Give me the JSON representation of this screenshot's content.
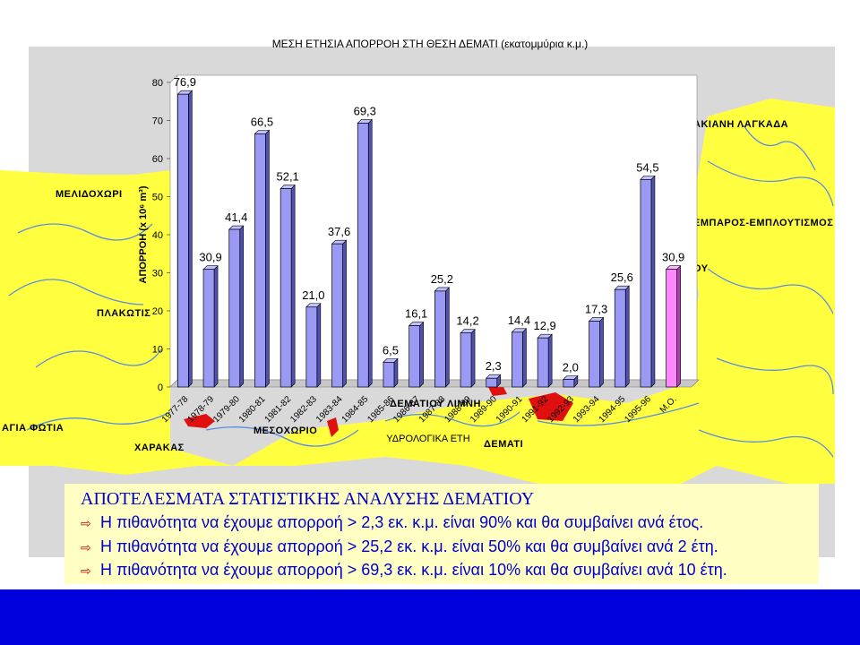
{
  "chart_data": {
    "type": "bar",
    "title": "ΜΕΣΗ ΕΤΗΣΙΑ ΑΠΟΡΡΟΗ ΣΤΗ ΘΕΣΗ ΔΕΜΑΤΙ (εκατομμύρια κ.μ.)",
    "ylabel": "ΑΠΟΡΡΟΗ (x 10⁶ m³)",
    "xlabel": "ΥΔΡΟΛΟΓΙΚΑ ΕΤΗ",
    "ylim": [
      0,
      80
    ],
    "yticks": [
      "0",
      "10",
      "20",
      "30",
      "40",
      "50",
      "60",
      "70",
      "80"
    ],
    "grid": false,
    "categories": [
      "1977-78",
      "1978-79",
      "1979-80",
      "1980-81",
      "1981-82",
      "1982-83",
      "1983-84",
      "1984-85",
      "1985-86",
      "1986-87",
      "1987-88",
      "1988-89",
      "1989-90",
      "1990-91",
      "1991-92",
      "1992-93",
      "1993-94",
      "1994-95",
      "1995-96",
      "Μ.Ο."
    ],
    "values": [
      76.9,
      30.9,
      41.4,
      66.5,
      52.1,
      21.0,
      37.6,
      69.3,
      6.5,
      16.1,
      25.2,
      14.2,
      2.3,
      14.4,
      12.9,
      2.0,
      17.3,
      25.6,
      54.5,
      30.9
    ],
    "value_labels": [
      "76,9",
      "30,9",
      "41,4",
      "66,5",
      "52,1",
      "21,0",
      "37,6",
      "69,3",
      "6,5",
      "16,1",
      "25,2",
      "14,2",
      "2,3",
      "14,4",
      "12,9",
      "2,0",
      "17,3",
      "25,6",
      "54,5",
      "30,9"
    ],
    "bar_color": "#9a9af5",
    "mean_bar_color": "#ff88ff"
  },
  "map_labels": {
    "meliochori": "ΜΕΛΙΔΟΧΩΡΙ",
    "plakotis": "ΠΛΑΚΩΤΙΣ",
    "agia_fotia": "ΑΓΙΑ ΦΩΤΙΑ",
    "charakas": "ΧΑΡΑΚΑΣ",
    "mesochorio": "ΜΕΣΟΧΩΡΙΟ",
    "dematiou_limni": "ΔΕΜΑΤΙΟΥ ΛΙΜΝΗ",
    "demati": "ΔΕΜΑΤΙ",
    "lagkada": "ΑΚΙΑΝΗ ΛΑΓΚΑΔΑ",
    "emparos": "ΕΜΠΑΡΟΣ-ΕΜΠΛΟΥΤΙΣΜΟΣ",
    "ou": "ΟΥ"
  },
  "results": {
    "title": "ΑΠΟΤΕΛΕΣΜΑΤΑ ΣΤΑΤΙΣΤΙΚΗΣ ΑΝΑΛΥΣΗΣ ΔΕΜΑΤΙΟΥ",
    "lines": [
      "Η πιθανότητα να έχουμε απορροή > 2,3 εκ. κ.μ. είναι 90% και θα συμβαίνει ανά έτος.",
      "Η πιθανότητα να έχουμε απορροή > 25,2 εκ. κ.μ. είναι 50% και θα συμβαίνει ανά 2 έτη.",
      "Η πιθανότητα να έχουμε απορροή > 69,3 εκ. κ.μ. είναι 10% και θα συμβαίνει ανά 10 έτη."
    ]
  },
  "colors": {
    "map_yellow": "#ffff40",
    "map_gray": "#d9d9d9",
    "river_blue": "#5a8de0",
    "lake_red": "#e01010",
    "text_blue": "#0000cc",
    "footer_blue": "#0000dd"
  }
}
